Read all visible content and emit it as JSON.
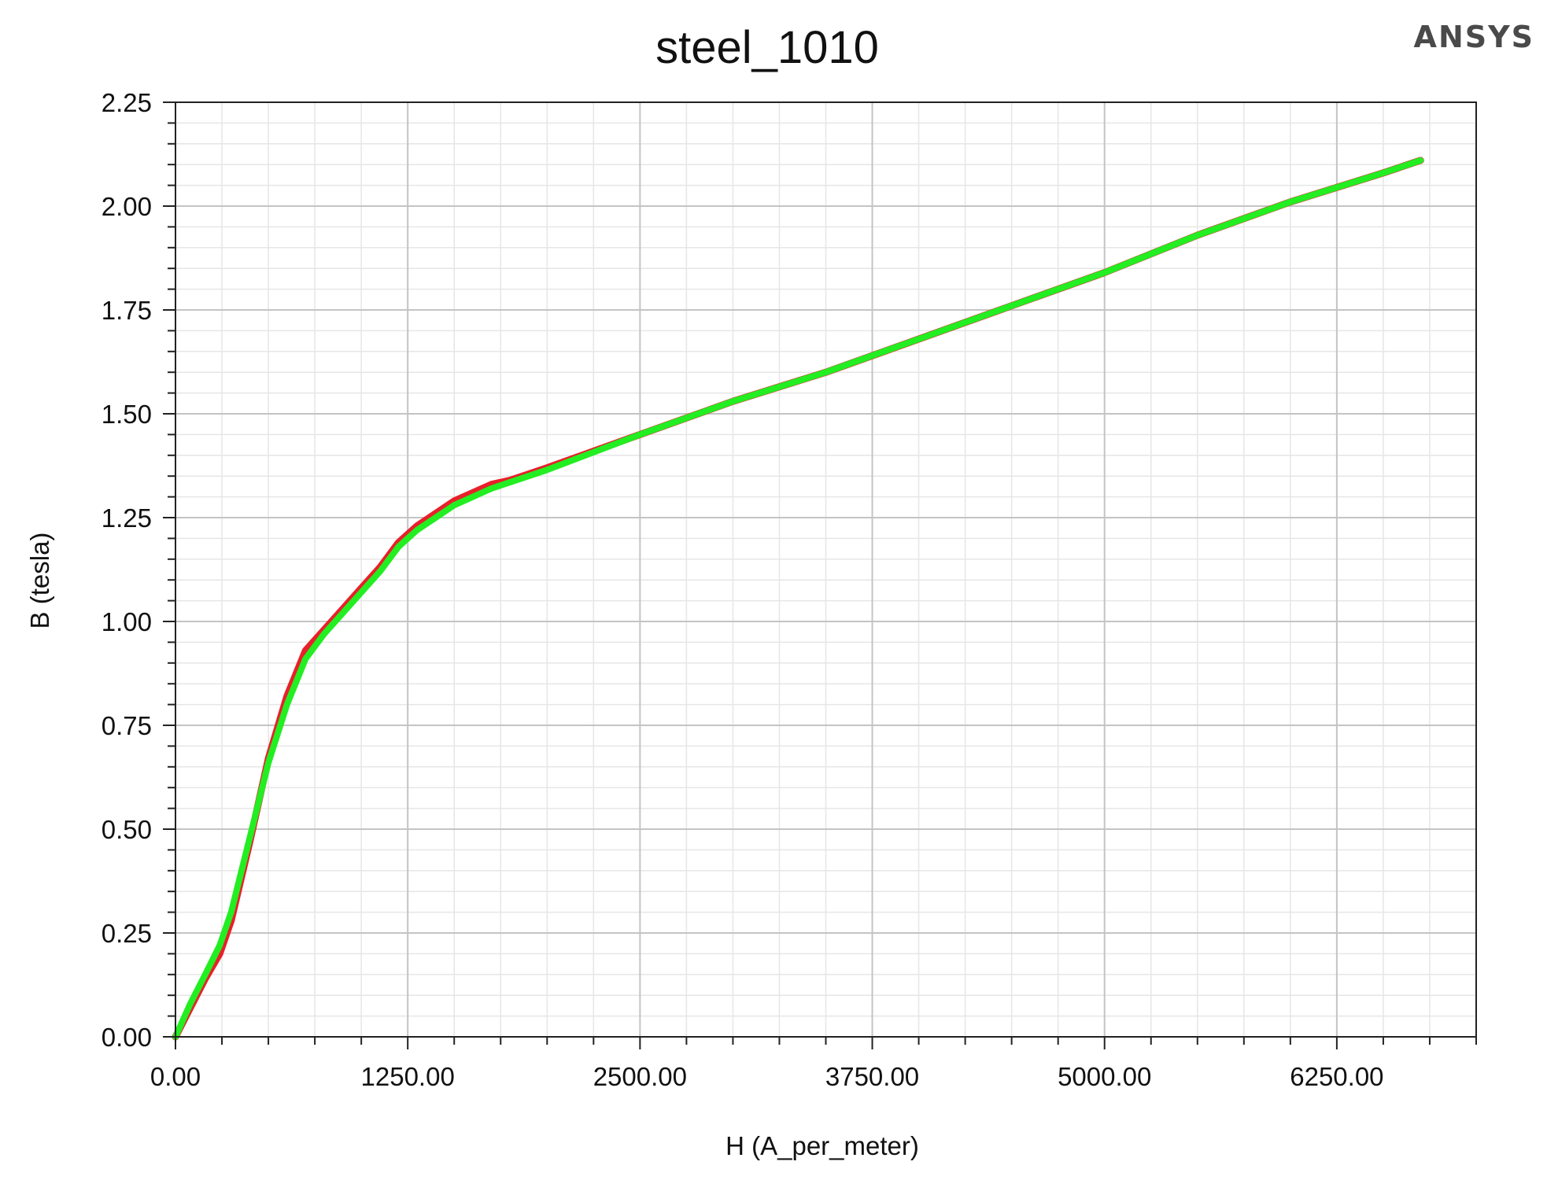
{
  "brand": "ANSYS",
  "chart_data": {
    "type": "line",
    "title": "steel_1010",
    "xlabel": "H (A_per_meter)",
    "ylabel": "B (tesla)",
    "xlim": [
      0,
      7000
    ],
    "ylim": [
      0,
      2.25
    ],
    "x_ticks": [
      "0.00",
      "1250.00",
      "2500.00",
      "3750.00",
      "5000.00",
      "6250.00"
    ],
    "x_tick_values": [
      0,
      1250,
      2500,
      3750,
      5000,
      6250
    ],
    "y_ticks": [
      "0.00",
      "0.25",
      "0.50",
      "0.75",
      "1.00",
      "1.25",
      "1.50",
      "1.75",
      "2.00",
      "2.25"
    ],
    "y_tick_values": [
      0,
      0.25,
      0.5,
      0.75,
      1.0,
      1.25,
      1.5,
      1.75,
      2.0,
      2.25
    ],
    "grid": true,
    "series": [
      {
        "color": "#e8202a",
        "x": [
          0,
          80,
          160,
          238,
          300,
          400,
          500,
          600,
          700,
          800,
          900,
          1000,
          1100,
          1200,
          1300,
          1400,
          1500,
          1600,
          1700,
          1800,
          1900,
          2000,
          2500,
          3000,
          3500,
          4000,
          4500,
          5000,
          5500,
          6000,
          6500,
          6700
        ],
        "y": [
          0.0,
          0.07,
          0.14,
          0.2,
          0.28,
          0.47,
          0.67,
          0.82,
          0.93,
          0.98,
          1.03,
          1.08,
          1.13,
          1.19,
          1.23,
          1.26,
          1.29,
          1.31,
          1.33,
          1.34,
          1.355,
          1.37,
          1.45,
          1.53,
          1.6,
          1.68,
          1.76,
          1.84,
          1.93,
          2.01,
          2.08,
          2.11
        ]
      },
      {
        "color": "#22ee22",
        "x": [
          0,
          80,
          160,
          238,
          300,
          400,
          500,
          600,
          700,
          800,
          900,
          1000,
          1100,
          1200,
          1300,
          1400,
          1500,
          1600,
          1700,
          1800,
          1900,
          2000,
          2500,
          3000,
          3500,
          4000,
          4500,
          5000,
          5500,
          6000,
          6500,
          6700
        ],
        "y": [
          0.0,
          0.08,
          0.15,
          0.22,
          0.3,
          0.48,
          0.66,
          0.8,
          0.91,
          0.97,
          1.02,
          1.07,
          1.12,
          1.18,
          1.22,
          1.25,
          1.28,
          1.3,
          1.32,
          1.335,
          1.35,
          1.365,
          1.45,
          1.53,
          1.6,
          1.68,
          1.76,
          1.84,
          1.93,
          2.01,
          2.08,
          2.11
        ]
      }
    ]
  }
}
